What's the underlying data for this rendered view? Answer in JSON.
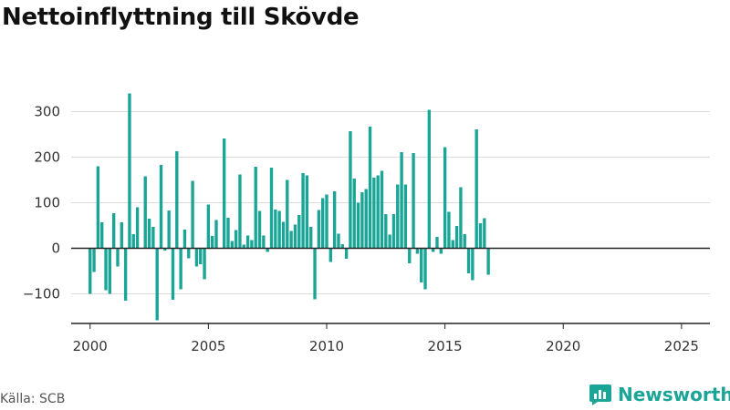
{
  "title": "Nettoinflyttning till Skövde",
  "source": "Källa: SCB",
  "brand": {
    "name": "Newsworthy",
    "icon": "newsworthy-logo-icon",
    "color": "#1aa596"
  },
  "chart_data": {
    "type": "bar",
    "title": "Nettoinflyttning till Skövde",
    "xlabel": "",
    "ylabel": "",
    "ylim": [
      -165,
      345
    ],
    "xlim": [
      1999.2,
      2026.2
    ],
    "bar_color": "#1aa596",
    "grid": true,
    "yticks": [
      -100,
      0,
      100,
      200,
      300
    ],
    "ytick_labels": [
      "−100",
      "0",
      "100",
      "200",
      "300"
    ],
    "xticks": [
      2000,
      2005,
      2010,
      2015,
      2020,
      2025
    ],
    "xtick_labels": [
      "2000",
      "2005",
      "2010",
      "2015",
      "2020",
      "2025"
    ],
    "frequency": "monthly (every 2nd month)",
    "start": "2000-01",
    "values": [
      -100,
      -52,
      180,
      57,
      -92,
      -100,
      77,
      -40,
      57,
      -115,
      340,
      31,
      90,
      0,
      158,
      65,
      47,
      -158,
      183,
      -5,
      83,
      -113,
      213,
      -90,
      41,
      -22,
      148,
      -40,
      -35,
      -68,
      96,
      27,
      62,
      0,
      241,
      67,
      16,
      40,
      162,
      8,
      28,
      18,
      179,
      82,
      28,
      -8,
      177,
      85,
      82,
      58,
      150,
      38,
      52,
      73,
      165,
      160,
      47,
      -112,
      84,
      110,
      118,
      -30,
      125,
      32,
      9,
      -23,
      257,
      153,
      100,
      123,
      130,
      267,
      155,
      160,
      170,
      75,
      30,
      75,
      140,
      211,
      140,
      -33,
      209,
      -12,
      -75,
      -90,
      304,
      -8,
      25,
      -12,
      222,
      80,
      18,
      49,
      134,
      31,
      -55,
      -70,
      261,
      55,
      66,
      -58
    ]
  }
}
